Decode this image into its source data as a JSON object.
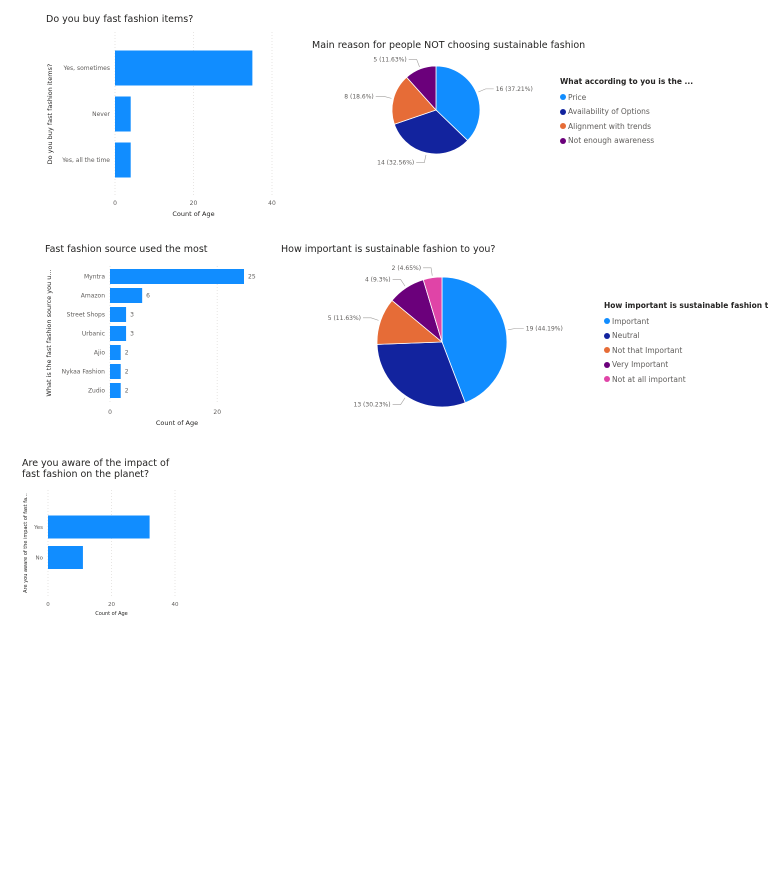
{
  "chart_data": [
    {
      "type": "bar",
      "orientation": "horizontal",
      "title": "Do you buy fast fashion items?",
      "ylabel": "Do you buy fast fashion items?",
      "xlabel": "Count of Age",
      "categories": [
        "Yes, sometimes",
        "Never",
        "Yes, all the time"
      ],
      "values": [
        35,
        4,
        4
      ],
      "xlim": [
        0,
        40
      ],
      "xticks": [
        "0",
        "20",
        "40"
      ],
      "color": "#118DFF",
      "grid": true
    },
    {
      "type": "pie",
      "title": "Main reason for people NOT choosing sustainable fashion",
      "legend_title": "What according to you is the ...",
      "legend_position": "right",
      "labels": [
        "Price",
        "Availability of Options",
        "Alignment with trends",
        "Not enough awareness"
      ],
      "values": [
        16,
        14,
        8,
        5
      ],
      "data_labels": [
        "16 (37.21%)",
        "14 (32.56%)",
        "8 (18.6%)",
        "5 (11.63%)"
      ],
      "colors": [
        "#118DFF",
        "#12239E",
        "#E66C37",
        "#6B007B"
      ]
    },
    {
      "type": "bar",
      "orientation": "horizontal",
      "title": "Fast fashion source used the most",
      "ylabel": "What is the fast fashion source you u...",
      "xlabel": "Count of Age",
      "categories": [
        "Myntra",
        "Amazon",
        "Street Shops",
        "Urbanic",
        "Ajio",
        "Nykaa Fashion",
        "Zudio"
      ],
      "values": [
        25,
        6,
        3,
        3,
        2,
        2,
        2
      ],
      "data_labels": [
        "25",
        "6",
        "3",
        "3",
        "2",
        "2",
        "2"
      ],
      "xlim": [
        0,
        25
      ],
      "xticks": [
        "0",
        "20"
      ],
      "color": "#118DFF",
      "grid": true
    },
    {
      "type": "pie",
      "title": "How important is sustainable fashion to you?",
      "legend_title": "How important is sustainable fashion to...",
      "legend_position": "right",
      "labels": [
        "Important",
        "Neutral",
        "Not that Important",
        "Very Important",
        "Not at all important"
      ],
      "values": [
        19,
        13,
        5,
        4,
        2
      ],
      "data_labels": [
        "19 (44.19%)",
        "13 (30.23%)",
        "5 (11.63%)",
        "4 (9.3%)",
        "2 (4.65%)"
      ],
      "colors": [
        "#118DFF",
        "#12239E",
        "#E66C37",
        "#6B007B",
        "#E044A7"
      ]
    },
    {
      "type": "bar",
      "orientation": "horizontal",
      "title": "Are you aware of the impact of fast fashion on the planet?",
      "ylabel": "Are you aware of the impact of fast fa...",
      "xlabel": "Count of Age",
      "categories": [
        "Yes",
        "No"
      ],
      "values": [
        32,
        11
      ],
      "xlim": [
        0,
        40
      ],
      "xticks": [
        "0",
        "20",
        "40"
      ],
      "color": "#118DFF",
      "grid": true
    }
  ]
}
